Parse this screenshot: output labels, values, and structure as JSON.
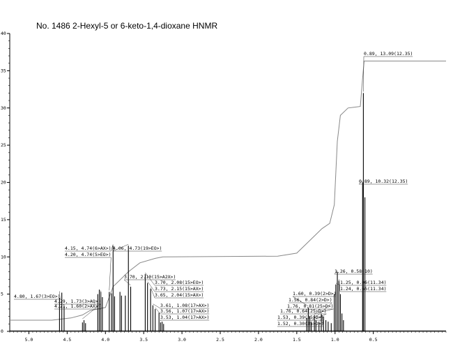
{
  "chart_data": {
    "type": "line",
    "title": "No. 1486 2-Hexyl-5 or 6-keto-1,4-dioxane HNMR",
    "xlabel": "",
    "ylabel": "",
    "x_reversed": true,
    "xlim": [
      5.5,
      -0.2
    ],
    "ylim": [
      0,
      40
    ],
    "x_ticks": [
      "5.0",
      "4.5",
      "4.0",
      "3.5",
      "3.0",
      "2.5",
      "2.0",
      "1.5",
      "1.0",
      "0.5"
    ],
    "x_tick_values": [
      5.25,
      4.75,
      4.25,
      3.75,
      3.25,
      2.75,
      2.25,
      1.75,
      1.25,
      0.75
    ],
    "y_ticks": [
      "0",
      "5",
      "10",
      "15",
      "20",
      "25",
      "30",
      "35",
      "40"
    ],
    "grid": false,
    "legend": "none",
    "peaks": [
      {
        "x": 4.85,
        "y": 4.5
      },
      {
        "x": 4.82,
        "y": 5.2
      },
      {
        "x": 4.79,
        "y": 3.4
      },
      {
        "x": 4.55,
        "y": 1.2
      },
      {
        "x": 4.53,
        "y": 1.5
      },
      {
        "x": 4.51,
        "y": 1.1
      },
      {
        "x": 4.35,
        "y": 5.0
      },
      {
        "x": 4.33,
        "y": 5.6
      },
      {
        "x": 4.31,
        "y": 5.3
      },
      {
        "x": 4.29,
        "y": 4.6
      },
      {
        "x": 4.2,
        "y": 5.3
      },
      {
        "x": 4.17,
        "y": 5.1
      },
      {
        "x": 4.15,
        "y": 11.5
      },
      {
        "x": 4.13,
        "y": 4.7
      },
      {
        "x": 4.06,
        "y": 5.3
      },
      {
        "x": 4.04,
        "y": 4.8
      },
      {
        "x": 3.99,
        "y": 4.8
      },
      {
        "x": 3.95,
        "y": 11.5
      },
      {
        "x": 3.92,
        "y": 6.0
      },
      {
        "x": 3.73,
        "y": 7.7
      },
      {
        "x": 3.7,
        "y": 6.5
      },
      {
        "x": 3.66,
        "y": 5.7
      },
      {
        "x": 3.63,
        "y": 3.5
      },
      {
        "x": 3.6,
        "y": 3.0
      },
      {
        "x": 3.55,
        "y": 2.5
      },
      {
        "x": 3.53,
        "y": 1.2
      },
      {
        "x": 3.51,
        "y": 1.3
      },
      {
        "x": 3.49,
        "y": 1.0
      },
      {
        "x": 1.62,
        "y": 1.8
      },
      {
        "x": 1.6,
        "y": 3.2
      },
      {
        "x": 1.58,
        "y": 2.0
      },
      {
        "x": 1.56,
        "y": 1.2
      },
      {
        "x": 1.52,
        "y": 2.2
      },
      {
        "x": 1.5,
        "y": 1.5
      },
      {
        "x": 1.46,
        "y": 1.3
      },
      {
        "x": 1.43,
        "y": 2.3
      },
      {
        "x": 1.4,
        "y": 2.0
      },
      {
        "x": 1.37,
        "y": 1.5
      },
      {
        "x": 1.34,
        "y": 1.3
      },
      {
        "x": 1.3,
        "y": 1.1
      },
      {
        "x": 1.26,
        "y": 5.0
      },
      {
        "x": 1.24,
        "y": 6.3
      },
      {
        "x": 1.22,
        "y": 8.0
      },
      {
        "x": 1.2,
        "y": 6.8
      },
      {
        "x": 1.18,
        "y": 5.0
      },
      {
        "x": 1.16,
        "y": 2.4
      },
      {
        "x": 1.14,
        "y": 1.5
      },
      {
        "x": 0.89,
        "y": 20.0
      },
      {
        "x": 0.88,
        "y": 32.0
      },
      {
        "x": 0.86,
        "y": 18.0
      }
    ],
    "integral": [
      {
        "x": 5.5,
        "y": 1.5
      },
      {
        "x": 4.95,
        "y": 1.5
      },
      {
        "x": 4.7,
        "y": 1.8
      },
      {
        "x": 4.55,
        "y": 2.2
      },
      {
        "x": 4.45,
        "y": 2.8
      },
      {
        "x": 4.25,
        "y": 3.2
      },
      {
        "x": 4.15,
        "y": 6.0
      },
      {
        "x": 3.95,
        "y": 8.0
      },
      {
        "x": 3.8,
        "y": 9.2
      },
      {
        "x": 3.6,
        "y": 9.8
      },
      {
        "x": 3.5,
        "y": 10.0
      },
      {
        "x": 2.0,
        "y": 10.1
      },
      {
        "x": 1.75,
        "y": 10.5
      },
      {
        "x": 1.6,
        "y": 12.0
      },
      {
        "x": 1.42,
        "y": 13.8
      },
      {
        "x": 1.32,
        "y": 14.5
      },
      {
        "x": 1.26,
        "y": 17.0
      },
      {
        "x": 1.22,
        "y": 25.5
      },
      {
        "x": 1.18,
        "y": 29.0
      },
      {
        "x": 1.08,
        "y": 30.0
      },
      {
        "x": 0.92,
        "y": 30.2
      },
      {
        "x": 0.89,
        "y": 34.0
      },
      {
        "x": 0.87,
        "y": 36.3
      },
      {
        "x": -0.2,
        "y": 36.3
      }
    ],
    "annotations": [
      {
        "text": "4.80, 1.67(3>EO>)",
        "x": 4.85,
        "y": 5.2
      },
      {
        "text": "4.29, 1.73(3>AQ>)",
        "x": 4.55,
        "y": 1.5
      },
      {
        "text": "4.21, 1.60(2>AX>)",
        "x": 4.31,
        "y": 5.3
      },
      {
        "text": "4.15, 4.74(6>AX>)",
        "x": 4.15,
        "y": 11.5
      },
      {
        "text": "4.20, 4.74(5>EO>)",
        "x": 4.2,
        "y": 5.3
      },
      {
        "text": "4.06, 4.73(19>EO>)",
        "x": 3.95,
        "y": 11.5
      },
      {
        "text": "3.70, 2.10(15>A2X>)",
        "x": 3.92,
        "y": 6.0
      },
      {
        "text": "3.70, 2.08(15>EO>)",
        "x": 3.73,
        "y": 7.7
      },
      {
        "text": "3.73, 2.15(15>AX>)",
        "x": 3.7,
        "y": 6.5
      },
      {
        "text": "3.65, 2.04(15>AX>)",
        "x": 3.66,
        "y": 5.7
      },
      {
        "text": "3.61, 1.08(17>AX>)",
        "x": 3.63,
        "y": 3.5
      },
      {
        "text": "3.56, 1.07(17>AX>)",
        "x": 3.6,
        "y": 3.0
      },
      {
        "text": "3.53, 1.04(17>AX>)",
        "x": 3.53,
        "y": 1.2
      },
      {
        "text": "1.60, 0.39(2>D>)",
        "x": 1.6,
        "y": 3.2
      },
      {
        "text": "1.56, 0.84(2>D>)",
        "x": 1.56,
        "y": 1.2
      },
      {
        "text": "1.76, 0.81(25>D>)",
        "x": 1.52,
        "y": 2.2
      },
      {
        "text": "1.76, 0.64(25>D>)",
        "x": 1.5,
        "y": 1.5
      },
      {
        "text": "1.53, 0.39(25>D>)",
        "x": 1.46,
        "y": 1.3
      },
      {
        "text": "1.52, 0.30(25>D>)",
        "x": 1.43,
        "y": 2.3
      },
      {
        "text": "1.26, 0.58(10)",
        "x": 1.22,
        "y": 8.0
      },
      {
        "text": "1.25, 0.06(11.34)",
        "x": 1.24,
        "y": 6.3
      },
      {
        "text": "1.24, 0.65(11.34)",
        "x": 1.2,
        "y": 6.8
      },
      {
        "text": "0.89, 13.09(12.35)",
        "x": 0.88,
        "y": 32.0
      },
      {
        "text": "0.89, 10.32(12.35)",
        "x": 0.89,
        "y": 20.0
      }
    ],
    "colors": {
      "spectrum": "#000000",
      "integral": "#888888",
      "leader": "#333333"
    }
  }
}
